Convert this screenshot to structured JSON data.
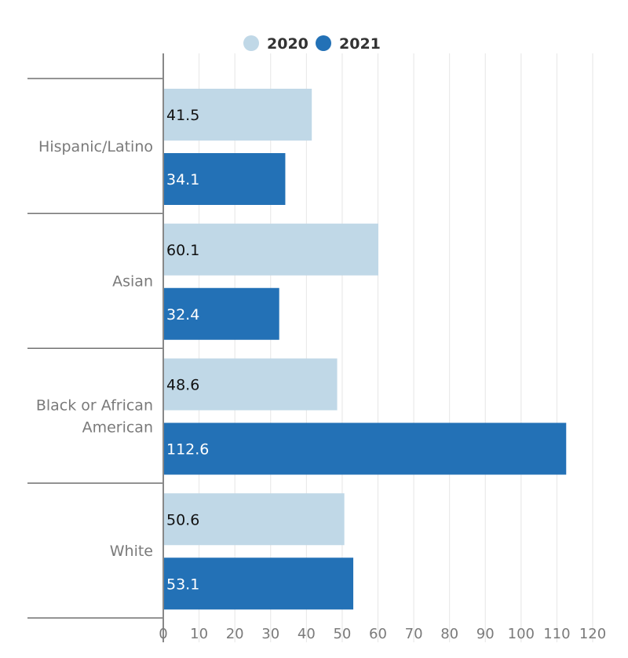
{
  "chart_data": {
    "type": "bar",
    "orientation": "horizontal",
    "categories": [
      "Hispanic/Latino",
      "Asian",
      "Black or African American",
      "White"
    ],
    "category_lines": [
      [
        "Hispanic/Latino"
      ],
      [
        "Asian"
      ],
      [
        "Black or African",
        "American"
      ],
      [
        "White"
      ]
    ],
    "series": [
      {
        "name": "2020",
        "values": [
          41.5,
          60.1,
          48.6,
          50.6
        ],
        "color": "#c0d8e7",
        "label_color": "#111111"
      },
      {
        "name": "2021",
        "values": [
          34.1,
          32.4,
          112.6,
          53.1
        ],
        "color": "#2371b6",
        "label_color": "#ffffff"
      }
    ],
    "xlim": [
      0,
      120
    ],
    "xticks": [
      0,
      10,
      20,
      30,
      40,
      50,
      60,
      70,
      80,
      90,
      100,
      110,
      120
    ],
    "xlabel": "",
    "ylabel": "",
    "title": "",
    "grid": "vertical",
    "legend_position": "top-center"
  }
}
